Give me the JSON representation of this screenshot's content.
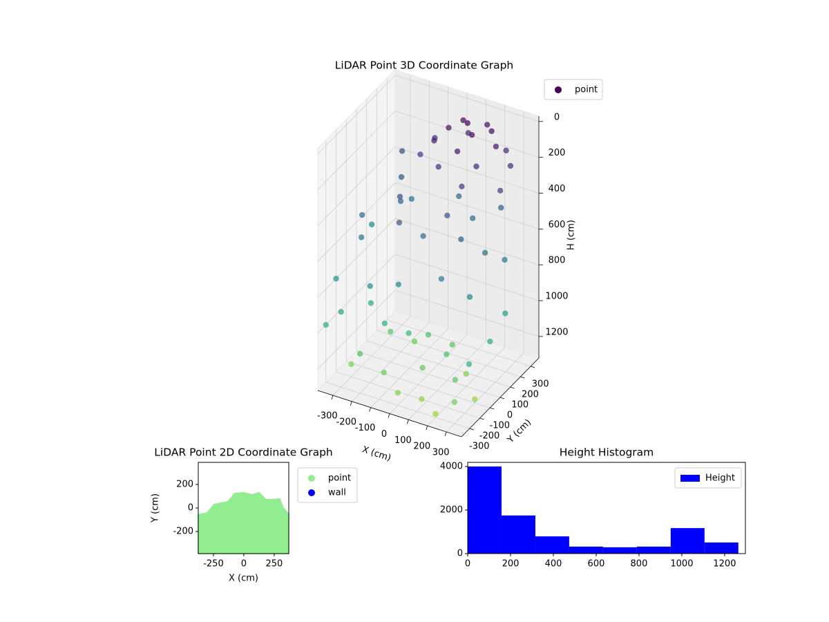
{
  "chart_data": [
    {
      "type": "scatter3d",
      "title": "LiDAR Point 3D Coordinate Graph",
      "xlabel": "X (cm)",
      "ylabel": "Y (cm)",
      "zlabel": "H (cm)",
      "xlim": [
        -380,
        380
      ],
      "ylim": [
        -380,
        380
      ],
      "zlim": [
        -30,
        1320
      ],
      "z_inverted": true,
      "xticks": [
        -300,
        -200,
        -100,
        0,
        100,
        200,
        300
      ],
      "yticks": [
        -300,
        -200,
        -100,
        0,
        100,
        200,
        300
      ],
      "zticks": [
        0,
        200,
        400,
        600,
        800,
        1000,
        1200
      ],
      "colormap": "viridis",
      "legend": "upper right",
      "series": [
        {
          "name": "point",
          "color": "#440154",
          "x": [
            100,
            150,
            50,
            200,
            0,
            150,
            250,
            100,
            -50,
            200,
            50,
            250,
            300,
            -100,
            0,
            150,
            300,
            -150,
            -300,
            -250,
            -200,
            -350,
            -300,
            -150,
            -100,
            0,
            100,
            200,
            300,
            350,
            300,
            150,
            -50,
            -200,
            -380,
            -380,
            250,
            0,
            -250,
            100,
            -300,
            -380,
            -200,
            -100,
            0,
            100,
            200,
            300,
            350,
            380,
            380,
            250,
            150,
            50,
            -50,
            -150,
            -250,
            0,
            100,
            -100,
            200,
            -200,
            300,
            -300
          ],
          "y": [
            200,
            150,
            250,
            250,
            200,
            300,
            200,
            100,
            150,
            100,
            300,
            300,
            250,
            250,
            100,
            50,
            150,
            200,
            300,
            200,
            100,
            0,
            -100,
            0,
            -100,
            -50,
            0,
            -50,
            0,
            100,
            -150,
            -150,
            -200,
            -200,
            150,
            -200,
            250,
            300,
            300,
            250,
            -300,
            -300,
            -300,
            -250,
            -300,
            -250,
            -300,
            -300,
            -250,
            -100,
            50,
            -200,
            -100,
            -150,
            -100,
            -150,
            -100,
            0,
            50,
            50,
            0,
            0,
            -100,
            -200
          ],
          "z": [
            0,
            20,
            30,
            40,
            60,
            50,
            80,
            100,
            120,
            150,
            130,
            160,
            200,
            180,
            220,
            250,
            280,
            260,
            350,
            420,
            480,
            550,
            600,
            380,
            450,
            520,
            400,
            470,
            540,
            620,
            700,
            650,
            720,
            780,
            700,
            800,
            450,
            500,
            600,
            560,
            900,
            1000,
            1100,
            1200,
            1250,
            1280,
            1300,
            1200,
            1000,
            950,
            880,
            1150,
            1100,
            1180,
            1050,
            1000,
            950,
            1100,
            1150,
            1200,
            1250,
            1150,
            1300,
            1250
          ]
        }
      ]
    },
    {
      "type": "area",
      "title": "LiDAR Point 2D Coordinate Graph",
      "xlabel": "X (cm)",
      "ylabel": "Y (cm)",
      "xlim": [
        -375,
        370
      ],
      "ylim": [
        -388,
        388
      ],
      "xticks": [
        -250,
        0,
        250
      ],
      "yticks": [
        -200,
        0,
        200
      ],
      "legend": "outside upper right",
      "series": [
        {
          "name": "point",
          "color": "#90ee90",
          "x": [
            -375,
            -301,
            -244,
            -131,
            -102,
            -74,
            0,
            68,
            125,
            182,
            239,
            295,
            324,
            369
          ],
          "values": [
            -59,
            -41,
            29,
            53,
            88,
            124,
            129,
            112,
            129,
            71,
            71,
            76,
            0,
            -53
          ]
        },
        {
          "name": "wall",
          "color": "#0000ff",
          "x": [],
          "values": []
        }
      ]
    },
    {
      "type": "histogram",
      "title": "Height Histogram",
      "xlim": [
        0,
        1297
      ],
      "ylim": [
        0,
        4190
      ],
      "xticks": [
        0,
        200,
        400,
        600,
        800,
        1000,
        1200
      ],
      "yticks": [
        0,
        2000,
        4000
      ],
      "legend": "upper right",
      "bins": [
        0,
        158,
        316,
        474,
        632,
        790,
        948,
        1106,
        1264
      ],
      "series": [
        {
          "name": "Height",
          "color": "#0000ff",
          "values": [
            4000,
            1750,
            790,
            320,
            290,
            320,
            1170,
            510
          ]
        }
      ]
    }
  ]
}
